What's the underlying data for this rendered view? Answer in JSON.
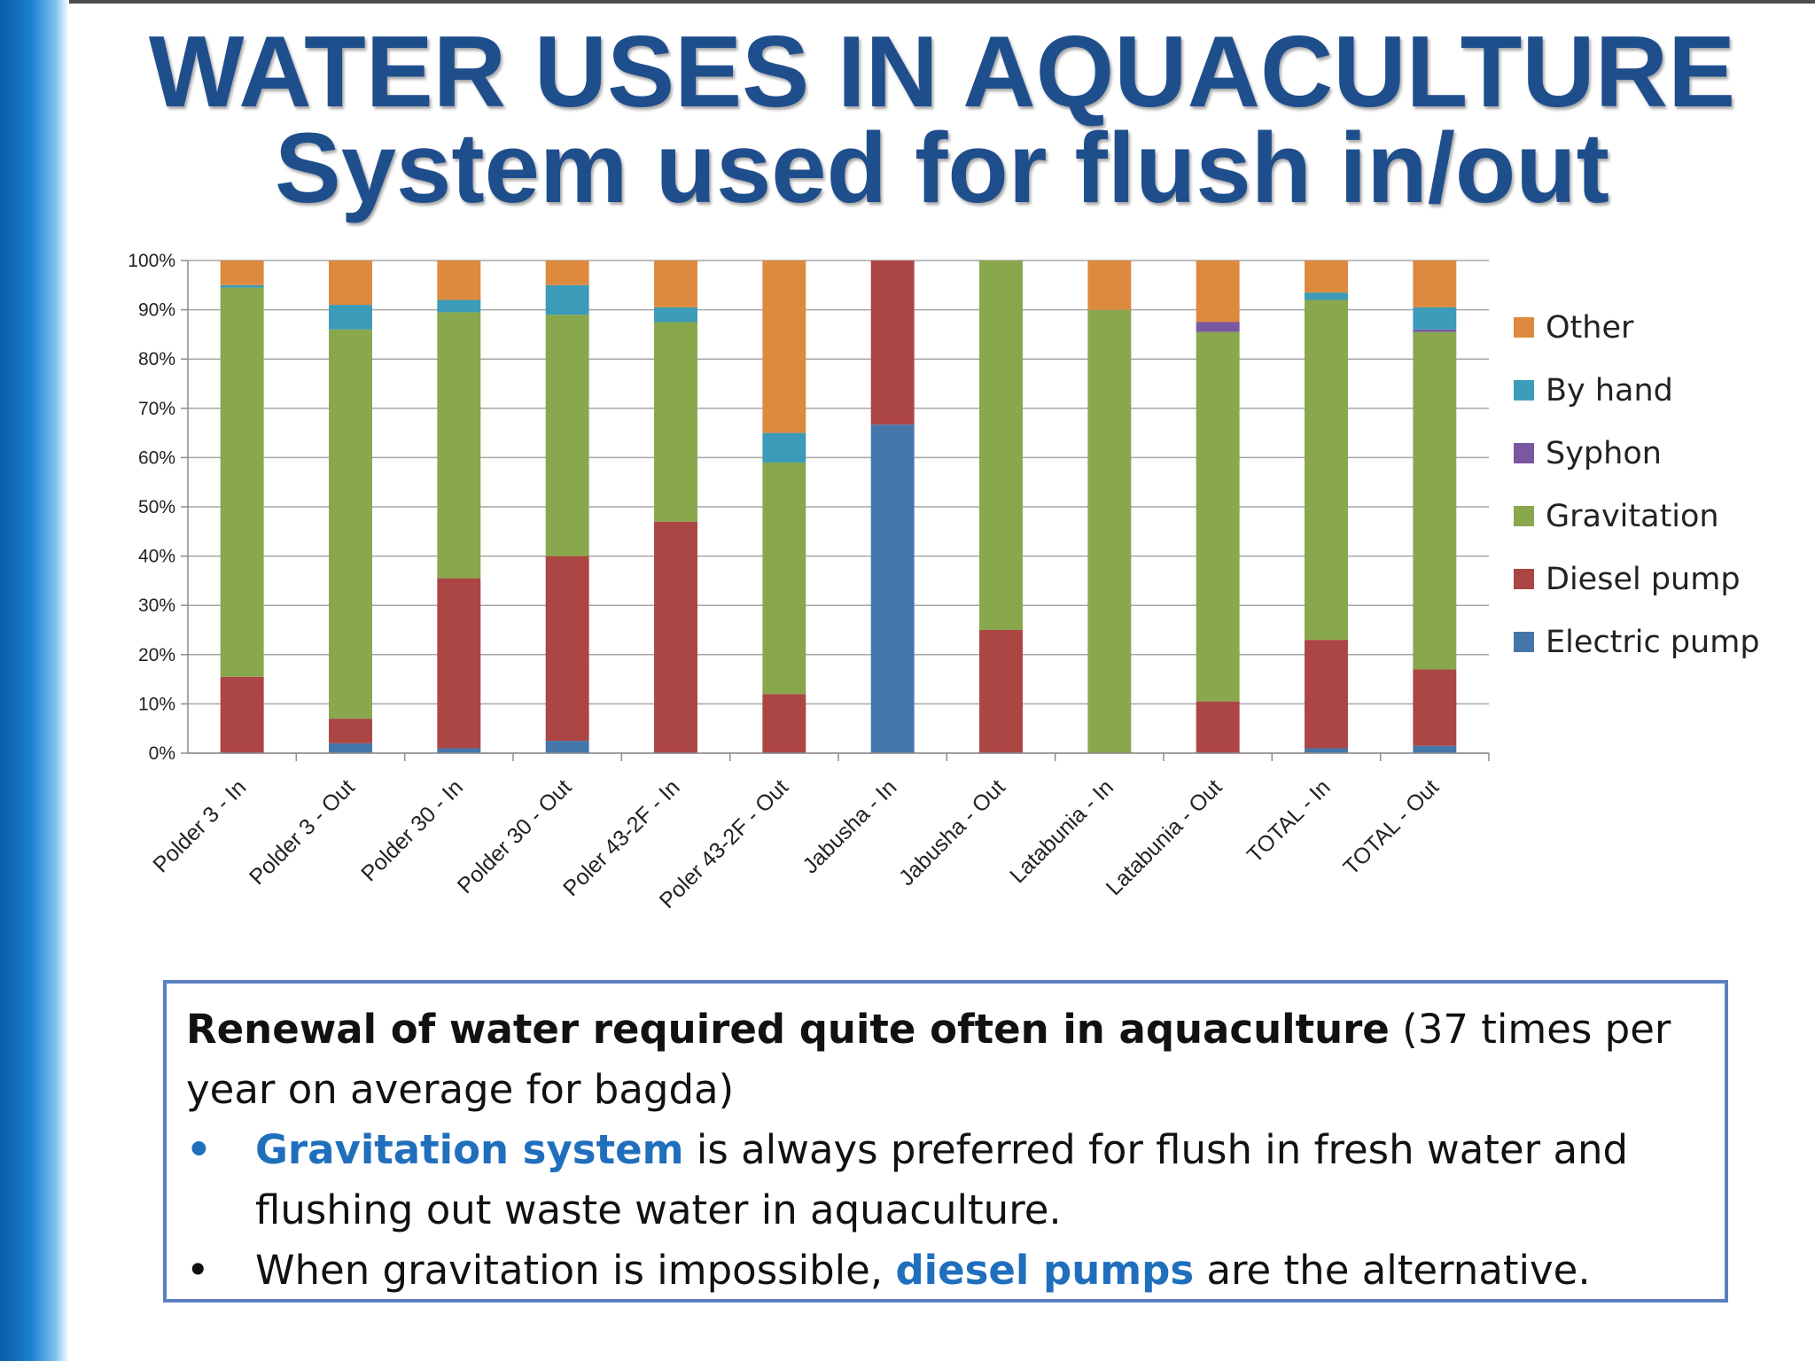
{
  "slide": {
    "title_line1": "WATER USES IN AQUACULTURE",
    "title_line2": "System used for flush in/out"
  },
  "colors": {
    "Other": "#dd8a3f",
    "By hand": "#3c9bb8",
    "Syphon": "#7a58a0",
    "Gravitation": "#89a74c",
    "Diesel pump": "#ab4645",
    "Electric pump": "#4576aa",
    "title": "#1f4e8c",
    "accent_text": "#1f6fbd",
    "box_border": "#5b7fbf"
  },
  "chart_data": {
    "type": "bar",
    "stacked": true,
    "percent_stacked": true,
    "categories": [
      "Polder 3 - In",
      "Polder 3 - Out",
      "Polder 30 - In",
      "Polder 30 - Out",
      "Poler 43-2F - In",
      "Poler 43-2F - Out",
      "Jabusha - In",
      "Jabusha - Out",
      "Latabunia - In",
      "Latabunia - Out",
      "TOTAL - In",
      "TOTAL - Out"
    ],
    "series": [
      {
        "name": "Electric pump",
        "values": [
          0,
          2,
          1,
          2.5,
          0,
          0,
          66.7,
          0,
          0,
          0,
          1,
          1.5
        ]
      },
      {
        "name": "Diesel pump",
        "values": [
          15.5,
          5,
          34.5,
          37.5,
          47,
          12,
          33.3,
          25,
          0,
          10.5,
          22,
          15.5
        ]
      },
      {
        "name": "Gravitation",
        "values": [
          79,
          79,
          54,
          49,
          40.5,
          47,
          0,
          75,
          90,
          75,
          69,
          68.5
        ]
      },
      {
        "name": "Syphon",
        "values": [
          0,
          0,
          0,
          0,
          0,
          0,
          0,
          0,
          0,
          2,
          0,
          0.5
        ]
      },
      {
        "name": "By hand",
        "values": [
          0.5,
          5,
          2.5,
          6,
          3,
          6,
          0,
          0,
          0,
          0,
          1.5,
          4.5
        ]
      },
      {
        "name": "Other",
        "values": [
          5,
          9,
          8,
          5,
          9.5,
          35,
          0,
          0,
          10,
          12.5,
          6.5,
          9.5
        ]
      }
    ],
    "legend_order": [
      "Other",
      "By hand",
      "Syphon",
      "Gravitation",
      "Diesel pump",
      "Electric pump"
    ],
    "yticks": [
      "0%",
      "10%",
      "20%",
      "30%",
      "40%",
      "50%",
      "60%",
      "70%",
      "80%",
      "90%",
      "100%"
    ],
    "ylim": [
      0,
      100
    ],
    "grid": true,
    "legend_position": "right",
    "xlabel": "",
    "ylabel": ""
  },
  "note": {
    "intro_bold": "Renewal of water required quite often in aquaculture",
    "intro_rest": " (37 times per year on average for bagda)",
    "bullet_symbol": "•",
    "bullet1_highlight": "Gravitation system",
    "bullet1_rest": " is always preferred for flush in fresh water and flushing out waste water in aquaculture.",
    "bullet2_start": "When gravitation is impossible, ",
    "bullet2_highlight": "diesel pumps",
    "bullet2_end": " are the alternative."
  }
}
